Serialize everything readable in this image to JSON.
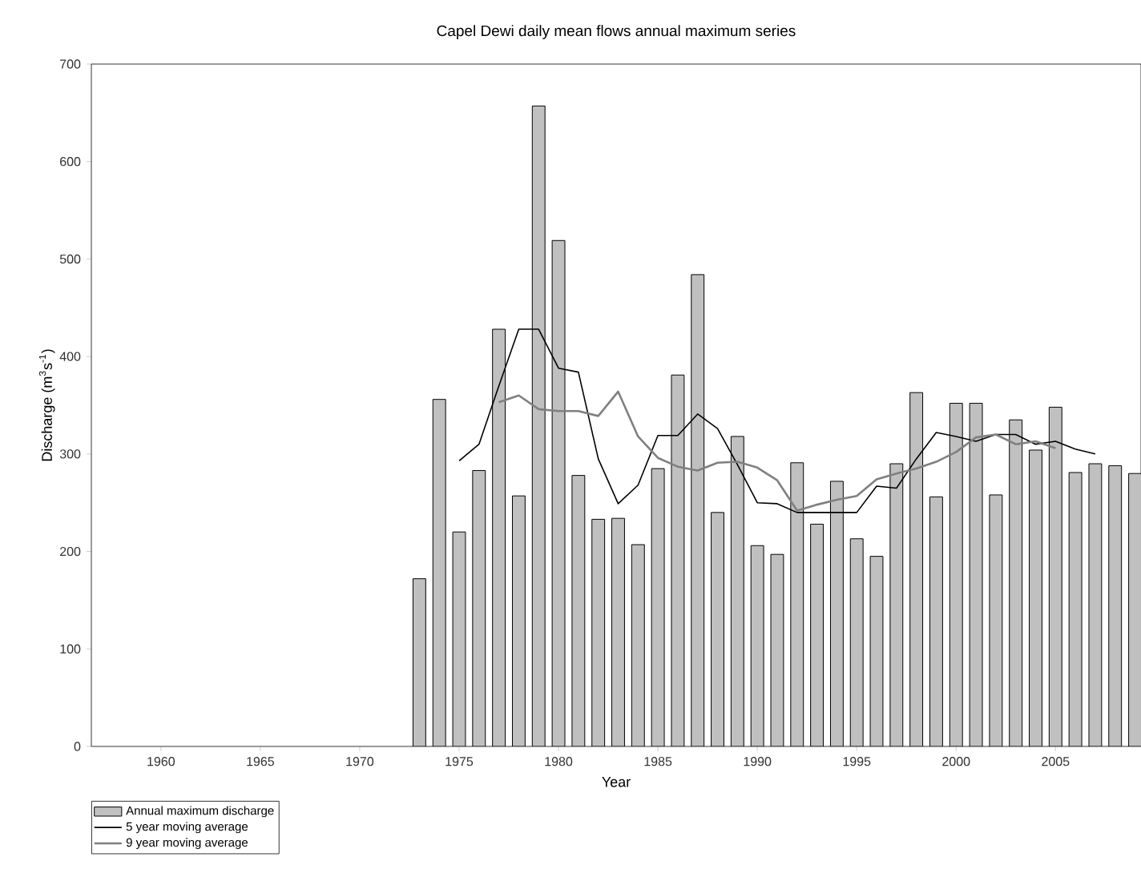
{
  "chart_data": {
    "type": "bar",
    "title": "Capel Dewi daily mean flows annual maximum series",
    "xlabel": "Year",
    "ylabel": "Discharge (m$^{3}$s$^{-1}$)",
    "x": [
      1973,
      1974,
      1975,
      1976,
      1977,
      1978,
      1979,
      1980,
      1981,
      1982,
      1983,
      1984,
      1985,
      1986,
      1987,
      1988,
      1989,
      1990,
      1991,
      1992,
      1993,
      1994,
      1995,
      1996,
      1997,
      1998,
      1999,
      2000,
      2001,
      2002,
      2003,
      2004,
      2005,
      2006,
      2007,
      2008,
      2009
    ],
    "series": [
      {
        "name": "Annual maximum discharge",
        "color": "#c0c0c0",
        "values": [
          172,
          356,
          220,
          283,
          428,
          257,
          657,
          519,
          278,
          233,
          234,
          207,
          285,
          381,
          484,
          240,
          318,
          206,
          197,
          291,
          228,
          272,
          213,
          195,
          290,
          363,
          256,
          352,
          352,
          258,
          335,
          304,
          348,
          281,
          290,
          288,
          280
        ]
      },
      {
        "name": "5 year moving average",
        "type": "line",
        "color": "#000000",
        "x": [
          1975,
          1976,
          1977,
          1978,
          1979,
          1980,
          1981,
          1982,
          1983,
          1984,
          1985,
          1986,
          1987,
          1988,
          1989,
          1990,
          1991,
          1992,
          1993,
          1994,
          1995,
          1996,
          1997,
          1998,
          1999,
          2000,
          2001,
          2002,
          2003,
          2004,
          2005,
          2006,
          2007
        ],
        "values": [
          293,
          310,
          370,
          428,
          428,
          388,
          384,
          295,
          249,
          268,
          319,
          319,
          341,
          326,
          289,
          250,
          249,
          240,
          240,
          240,
          240,
          267,
          265,
          295,
          322,
          318,
          313,
          320,
          320,
          310,
          313,
          305,
          300
        ]
      },
      {
        "name": "9 year moving average",
        "type": "line",
        "color": "#808080",
        "x": [
          1977,
          1978,
          1979,
          1980,
          1981,
          1982,
          1983,
          1984,
          1985,
          1986,
          1987,
          1988,
          1989,
          1990,
          1991,
          1992,
          1993,
          1994,
          1995,
          1996,
          1997,
          1998,
          1999,
          2000,
          2001,
          2002,
          2003,
          2004,
          2005
        ],
        "values": [
          353,
          360,
          346,
          344,
          344,
          339,
          364,
          318,
          296,
          287,
          283,
          291,
          292,
          286,
          273,
          242,
          248,
          253,
          257,
          274,
          280,
          285,
          292,
          302,
          317,
          320,
          310,
          313,
          306
        ]
      }
    ],
    "xlim": [
      1956.5,
      2009.3
    ],
    "xticks": [
      1960,
      1965,
      1970,
      1975,
      1980,
      1985,
      1990,
      1995,
      2000,
      2005
    ],
    "ylim": [
      0,
      700
    ],
    "yticks": [
      0,
      100,
      200,
      300,
      400,
      500,
      600,
      700
    ],
    "legend": "bottom left"
  }
}
